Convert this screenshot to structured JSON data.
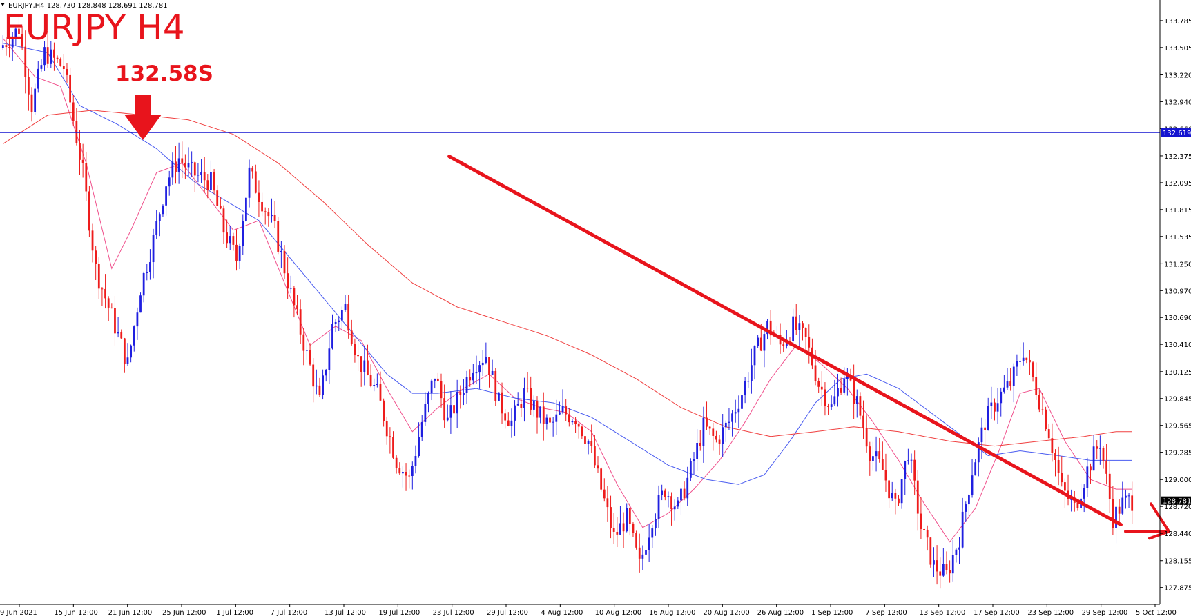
{
  "header": {
    "symbol_line": "EURJPY,H4  128.730 128.848 128.691 128.781",
    "title": "EURJPY H4",
    "annotation": "132.58S"
  },
  "colors": {
    "bull": "#1f1fe0",
    "bear": "#ee1c1c",
    "accent": "#e8141c",
    "level_line": "#1414d0",
    "ma_fast": "#f0508c",
    "ma_mid": "#4a5cf0",
    "ma_slow": "#f04040"
  },
  "icons": {
    "down_arrow": "down-arrow-icon",
    "right_arrow": "right-arrow-icon",
    "menu": "dropdown-triangle-icon"
  },
  "chart_data": {
    "type": "candlestick",
    "symbol": "EURJPY",
    "timeframe": "H4",
    "ylim": [
      127.7,
      134.0
    ],
    "y_ticks": [
      "133.785",
      "133.505",
      "133.220",
      "132.940",
      "132.660",
      "132.375",
      "132.095",
      "131.815",
      "131.535",
      "131.250",
      "130.970",
      "130.690",
      "130.410",
      "130.125",
      "129.845",
      "129.565",
      "129.285",
      "129.000",
      "128.720",
      "128.440",
      "128.155",
      "127.875"
    ],
    "x_ticks": [
      "9 Jun 2021",
      "15 Jun 12:00",
      "21 Jun 12:00",
      "25 Jun 12:00",
      "1 Jul 12:00",
      "7 Jul 12:00",
      "13 Jul 12:00",
      "19 Jul 12:00",
      "23 Jul 12:00",
      "29 Jul 12:00",
      "4 Aug 12:00",
      "10 Aug 12:00",
      "16 Aug 12:00",
      "20 Aug 12:00",
      "26 Aug 12:00",
      "1 Sep 12:00",
      "7 Sep 12:00",
      "13 Sep 12:00",
      "17 Sep 12:00",
      "23 Sep 12:00",
      "29 Sep 12:00",
      "5 Oct 12:00"
    ],
    "resistance_level": {
      "value": 132.619,
      "label": "132.619"
    },
    "current_price": {
      "value": 128.781,
      "label": "128.781"
    },
    "close_path": [
      [
        0,
        133.5
      ],
      [
        6,
        133.7
      ],
      [
        10,
        132.9
      ],
      [
        14,
        133.45
      ],
      [
        20,
        133.3
      ],
      [
        26,
        132.2
      ],
      [
        30,
        131.2
      ],
      [
        36,
        130.6
      ],
      [
        40,
        130.2
      ],
      [
        44,
        131.0
      ],
      [
        48,
        131.5
      ],
      [
        52,
        132.1
      ],
      [
        56,
        132.35
      ],
      [
        60,
        132.2
      ],
      [
        66,
        132.1
      ],
      [
        70,
        131.6
      ],
      [
        74,
        131.3
      ],
      [
        78,
        132.2
      ],
      [
        82,
        131.9
      ],
      [
        86,
        131.6
      ],
      [
        92,
        130.8
      ],
      [
        96,
        130.3
      ],
      [
        100,
        129.8
      ],
      [
        104,
        130.6
      ],
      [
        108,
        130.8
      ],
      [
        112,
        130.25
      ],
      [
        118,
        129.9
      ],
      [
        124,
        129.2
      ],
      [
        128,
        129.0
      ],
      [
        132,
        129.6
      ],
      [
        136,
        130.1
      ],
      [
        140,
        129.6
      ],
      [
        144,
        129.9
      ],
      [
        148,
        130.2
      ],
      [
        152,
        130.3
      ],
      [
        156,
        129.8
      ],
      [
        160,
        129.6
      ],
      [
        164,
        129.9
      ],
      [
        168,
        129.7
      ],
      [
        172,
        129.55
      ],
      [
        176,
        129.7
      ],
      [
        180,
        129.65
      ],
      [
        184,
        129.4
      ],
      [
        188,
        128.9
      ],
      [
        192,
        128.4
      ],
      [
        196,
        128.6
      ],
      [
        200,
        128.1
      ],
      [
        204,
        128.6
      ],
      [
        208,
        128.9
      ],
      [
        212,
        128.7
      ],
      [
        216,
        129.1
      ],
      [
        220,
        129.55
      ],
      [
        224,
        129.4
      ],
      [
        228,
        129.6
      ],
      [
        232,
        129.9
      ],
      [
        236,
        130.3
      ],
      [
        240,
        130.6
      ],
      [
        244,
        130.4
      ],
      [
        248,
        130.6
      ],
      [
        252,
        130.45
      ],
      [
        256,
        130.0
      ],
      [
        260,
        129.75
      ],
      [
        264,
        130.1
      ],
      [
        268,
        129.8
      ],
      [
        272,
        129.3
      ],
      [
        276,
        129.1
      ],
      [
        280,
        128.7
      ],
      [
        284,
        129.3
      ],
      [
        288,
        128.5
      ],
      [
        292,
        128.1
      ],
      [
        296,
        128.0
      ],
      [
        300,
        128.4
      ],
      [
        304,
        129.1
      ],
      [
        308,
        129.6
      ],
      [
        312,
        129.85
      ],
      [
        316,
        130.0
      ],
      [
        320,
        130.35
      ],
      [
        324,
        129.95
      ],
      [
        328,
        129.5
      ],
      [
        332,
        128.9
      ],
      [
        336,
        128.7
      ],
      [
        340,
        129.1
      ],
      [
        344,
        129.4
      ],
      [
        348,
        128.6
      ],
      [
        351,
        128.75
      ],
      [
        353,
        128.78
      ]
    ],
    "series": [
      {
        "name": "",
        "type": "ma",
        "color_key": "ma_fast",
        "points": [
          [
            0,
            133.6
          ],
          [
            10,
            133.2
          ],
          [
            18,
            133.1
          ],
          [
            26,
            132.3
          ],
          [
            34,
            131.2
          ],
          [
            40,
            131.6
          ],
          [
            48,
            132.2
          ],
          [
            56,
            132.3
          ],
          [
            64,
            131.95
          ],
          [
            72,
            131.6
          ],
          [
            80,
            131.7
          ],
          [
            88,
            131.05
          ],
          [
            96,
            130.4
          ],
          [
            104,
            130.6
          ],
          [
            112,
            130.45
          ],
          [
            120,
            129.95
          ],
          [
            128,
            129.5
          ],
          [
            136,
            129.75
          ],
          [
            144,
            129.95
          ],
          [
            152,
            130.1
          ],
          [
            160,
            129.85
          ],
          [
            168,
            129.75
          ],
          [
            176,
            129.7
          ],
          [
            184,
            129.5
          ],
          [
            192,
            128.95
          ],
          [
            200,
            128.5
          ],
          [
            208,
            128.65
          ],
          [
            216,
            128.9
          ],
          [
            224,
            129.2
          ],
          [
            232,
            129.6
          ],
          [
            240,
            130.05
          ],
          [
            248,
            130.4
          ],
          [
            256,
            130.2
          ],
          [
            264,
            129.95
          ],
          [
            272,
            129.6
          ],
          [
            280,
            129.2
          ],
          [
            288,
            128.75
          ],
          [
            296,
            128.35
          ],
          [
            304,
            128.7
          ],
          [
            312,
            129.35
          ],
          [
            318,
            129.9
          ],
          [
            324,
            129.95
          ],
          [
            332,
            129.4
          ],
          [
            340,
            129.0
          ],
          [
            348,
            128.9
          ],
          [
            353,
            128.9
          ]
        ]
      },
      {
        "name": "",
        "type": "ma",
        "color_key": "ma_mid",
        "points": [
          [
            0,
            133.55
          ],
          [
            14,
            133.45
          ],
          [
            24,
            132.9
          ],
          [
            36,
            132.7
          ],
          [
            48,
            132.45
          ],
          [
            60,
            132.1
          ],
          [
            70,
            131.9
          ],
          [
            80,
            131.7
          ],
          [
            90,
            131.3
          ],
          [
            100,
            130.9
          ],
          [
            110,
            130.5
          ],
          [
            120,
            130.1
          ],
          [
            128,
            129.9
          ],
          [
            136,
            129.9
          ],
          [
            148,
            129.95
          ],
          [
            160,
            129.85
          ],
          [
            172,
            129.8
          ],
          [
            184,
            129.65
          ],
          [
            196,
            129.4
          ],
          [
            208,
            129.15
          ],
          [
            220,
            129.0
          ],
          [
            230,
            128.95
          ],
          [
            238,
            129.05
          ],
          [
            246,
            129.4
          ],
          [
            254,
            129.8
          ],
          [
            262,
            130.05
          ],
          [
            270,
            130.1
          ],
          [
            280,
            129.95
          ],
          [
            290,
            129.7
          ],
          [
            300,
            129.45
          ],
          [
            308,
            129.25
          ],
          [
            318,
            129.3
          ],
          [
            330,
            129.25
          ],
          [
            340,
            129.2
          ],
          [
            348,
            129.2
          ],
          [
            353,
            129.2
          ]
        ]
      },
      {
        "name": "",
        "type": "ma",
        "color_key": "ma_slow",
        "points": [
          [
            0,
            132.5
          ],
          [
            14,
            132.8
          ],
          [
            28,
            132.85
          ],
          [
            44,
            132.8
          ],
          [
            58,
            132.75
          ],
          [
            72,
            132.6
          ],
          [
            86,
            132.3
          ],
          [
            100,
            131.9
          ],
          [
            114,
            131.45
          ],
          [
            128,
            131.05
          ],
          [
            142,
            130.8
          ],
          [
            156,
            130.65
          ],
          [
            170,
            130.5
          ],
          [
            184,
            130.3
          ],
          [
            198,
            130.05
          ],
          [
            212,
            129.75
          ],
          [
            226,
            129.55
          ],
          [
            240,
            129.45
          ],
          [
            254,
            129.5
          ],
          [
            266,
            129.55
          ],
          [
            280,
            129.5
          ],
          [
            296,
            129.4
          ],
          [
            310,
            129.35
          ],
          [
            324,
            129.4
          ],
          [
            338,
            129.45
          ],
          [
            348,
            129.5
          ],
          [
            353,
            129.5
          ]
        ]
      }
    ],
    "trendline": {
      "from": [
        140,
        132.37
      ],
      "to": [
        350,
        128.53
      ]
    },
    "n_bars": 354
  }
}
